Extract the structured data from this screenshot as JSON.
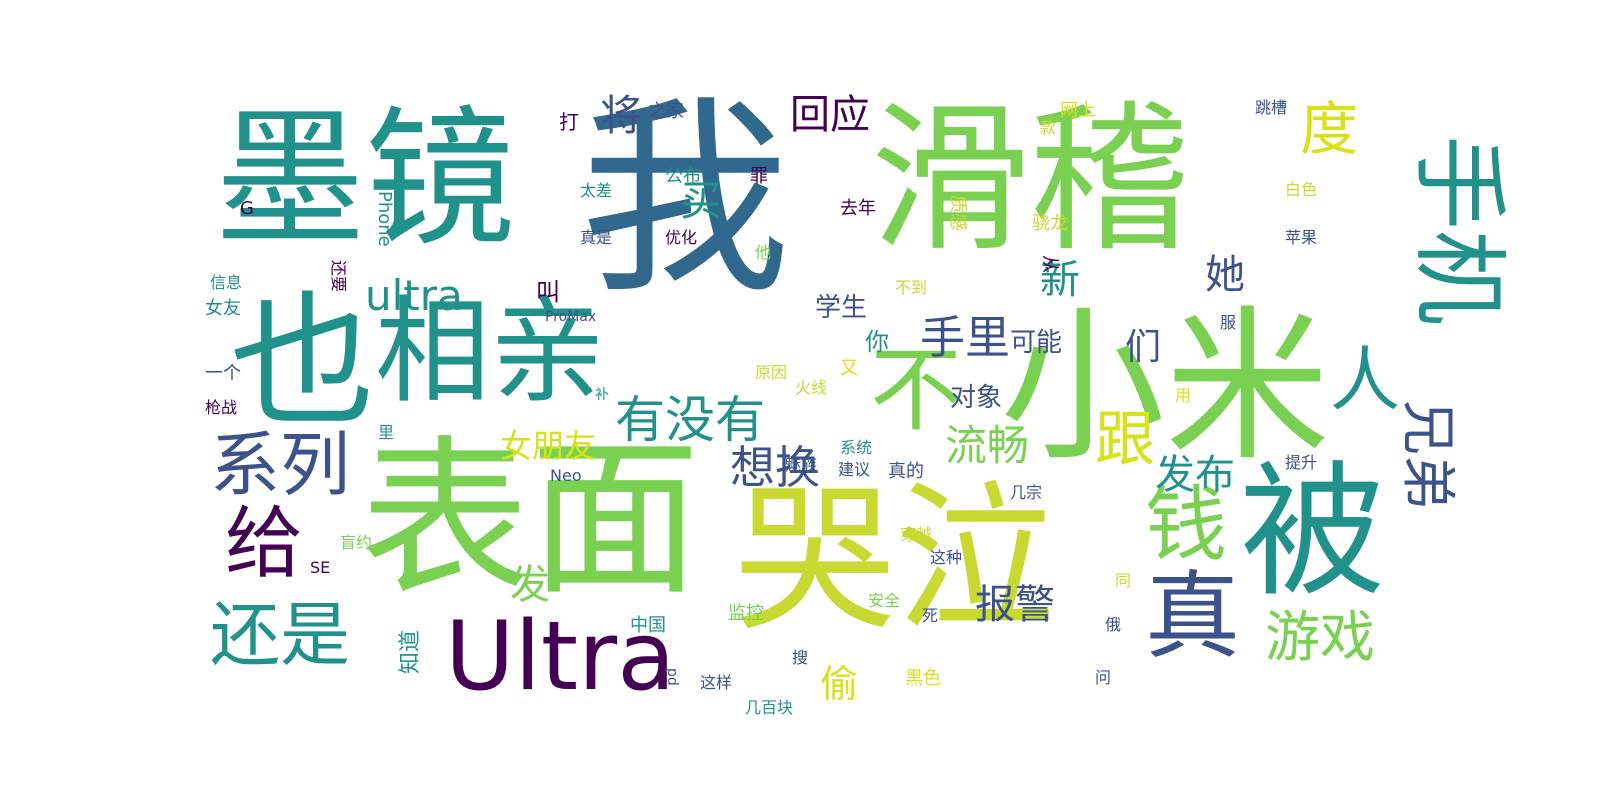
{
  "wordcloud": {
    "colors": {
      "purple": "#440154",
      "indigo": "#3b528b",
      "blue": "#31688e",
      "teal": "#21918c",
      "green": "#35b779",
      "lime": "#7ad151",
      "yellow": "#c8d932",
      "bright_yellow": "#d8e219"
    },
    "words": [
      {
        "text": "我"
      },
      {
        "text": "滑稽"
      },
      {
        "text": "墨镜"
      },
      {
        "text": "表面"
      },
      {
        "text": "哭泣"
      },
      {
        "text": "小米"
      },
      {
        "text": "也"
      },
      {
        "text": "相亲"
      },
      {
        "text": "被"
      },
      {
        "text": "Ultra"
      },
      {
        "text": "ultra"
      },
      {
        "text": "手机"
      },
      {
        "text": "不"
      },
      {
        "text": "系列"
      },
      {
        "text": "给"
      },
      {
        "text": "还是"
      },
      {
        "text": "真"
      },
      {
        "text": "钱"
      },
      {
        "text": "度"
      },
      {
        "text": "兄弟"
      },
      {
        "text": "人"
      },
      {
        "text": "有没有"
      },
      {
        "text": "手里"
      },
      {
        "text": "想换"
      },
      {
        "text": "流畅"
      },
      {
        "text": "游戏"
      },
      {
        "text": "跟"
      },
      {
        "text": "回应"
      },
      {
        "text": "将"
      },
      {
        "text": "买"
      },
      {
        "text": "新"
      },
      {
        "text": "她"
      },
      {
        "text": "们"
      },
      {
        "text": "发布"
      },
      {
        "text": "报警"
      },
      {
        "text": "偷"
      },
      {
        "text": "发"
      },
      {
        "text": "女朋友"
      },
      {
        "text": "对象"
      },
      {
        "text": "可能"
      },
      {
        "text": "学生"
      },
      {
        "text": "你"
      },
      {
        "text": "叫"
      },
      {
        "text": "打"
      },
      {
        "text": "之家"
      },
      {
        "text": "公布"
      },
      {
        "text": "罪"
      },
      {
        "text": "太差"
      },
      {
        "text": "G"
      },
      {
        "text": "iPhone"
      },
      {
        "text": "真是"
      },
      {
        "text": "优化"
      },
      {
        "text": "去年"
      },
      {
        "text": "质感"
      },
      {
        "text": "骁龙"
      },
      {
        "text": "网上"
      },
      {
        "text": "款"
      },
      {
        "text": "跳槽"
      },
      {
        "text": "白色"
      },
      {
        "text": "苹果"
      },
      {
        "text": "从"
      },
      {
        "text": "不到"
      },
      {
        "text": "他"
      },
      {
        "text": "信息"
      },
      {
        "text": "还要"
      },
      {
        "text": "女友"
      },
      {
        "text": "ProMax"
      },
      {
        "text": "服"
      },
      {
        "text": "一个"
      },
      {
        "text": "原因"
      },
      {
        "text": "又"
      },
      {
        "text": "补"
      },
      {
        "text": "用"
      },
      {
        "text": "枪战"
      },
      {
        "text": "火线"
      },
      {
        "text": "里"
      },
      {
        "text": "系统"
      },
      {
        "text": "真的"
      },
      {
        "text": "魅族"
      },
      {
        "text": "建议"
      },
      {
        "text": "Neo"
      },
      {
        "text": "提升"
      },
      {
        "text": "几宗"
      },
      {
        "text": "盲约"
      },
      {
        "text": "穿越"
      },
      {
        "text": "SE"
      },
      {
        "text": "这种"
      },
      {
        "text": "同"
      },
      {
        "text": "安全"
      },
      {
        "text": "死"
      },
      {
        "text": "监控"
      },
      {
        "text": "中国"
      },
      {
        "text": "俄"
      },
      {
        "text": "知道"
      },
      {
        "text": "搜"
      },
      {
        "text": "pd"
      },
      {
        "text": "这样"
      },
      {
        "text": "问"
      },
      {
        "text": "几百块"
      },
      {
        "text": "黑色"
      }
    ]
  }
}
